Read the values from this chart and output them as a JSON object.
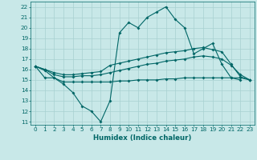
{
  "x": [
    0,
    1,
    2,
    3,
    4,
    5,
    6,
    7,
    8,
    9,
    10,
    11,
    12,
    13,
    14,
    15,
    16,
    17,
    18,
    19,
    20,
    21,
    22,
    23
  ],
  "line1": [
    16.3,
    15.9,
    15.2,
    14.6,
    13.8,
    12.5,
    12.0,
    11.0,
    13.0,
    19.5,
    20.5,
    20.0,
    21.0,
    21.5,
    22.0,
    20.8,
    20.0,
    17.5,
    18.0,
    18.5,
    16.5,
    15.2,
    15.0,
    null
  ],
  "line3": [
    16.3,
    16.0,
    15.7,
    15.5,
    15.5,
    15.6,
    15.7,
    15.8,
    16.4,
    16.6,
    16.8,
    17.0,
    17.2,
    17.4,
    17.6,
    17.7,
    17.8,
    18.0,
    18.1,
    17.9,
    17.7,
    16.5,
    15.3,
    15.0
  ],
  "line4": [
    16.3,
    16.0,
    15.5,
    15.3,
    15.3,
    15.4,
    15.4,
    15.5,
    15.7,
    15.9,
    16.1,
    16.3,
    16.5,
    16.6,
    16.8,
    16.9,
    17.0,
    17.2,
    17.3,
    17.2,
    17.0,
    16.4,
    15.5,
    15.0
  ],
  "line5": [
    16.3,
    15.2,
    15.2,
    14.8,
    14.8,
    14.8,
    14.8,
    14.8,
    14.8,
    14.9,
    14.9,
    15.0,
    15.0,
    15.0,
    15.1,
    15.1,
    15.2,
    15.2,
    15.2,
    15.2,
    15.2,
    15.2,
    15.2,
    15.0
  ],
  "bg_color": "#c8e8e8",
  "line_color": "#006666",
  "grid_color": "#a8d0d0",
  "xlabel": "Humidex (Indice chaleur)",
  "ylabel_ticks": [
    11,
    12,
    13,
    14,
    15,
    16,
    17,
    18,
    19,
    20,
    21,
    22
  ],
  "xlim": [
    -0.5,
    23.5
  ],
  "ylim": [
    10.7,
    22.5
  ],
  "tick_fontsize": 5.2,
  "label_fontsize": 6.2
}
